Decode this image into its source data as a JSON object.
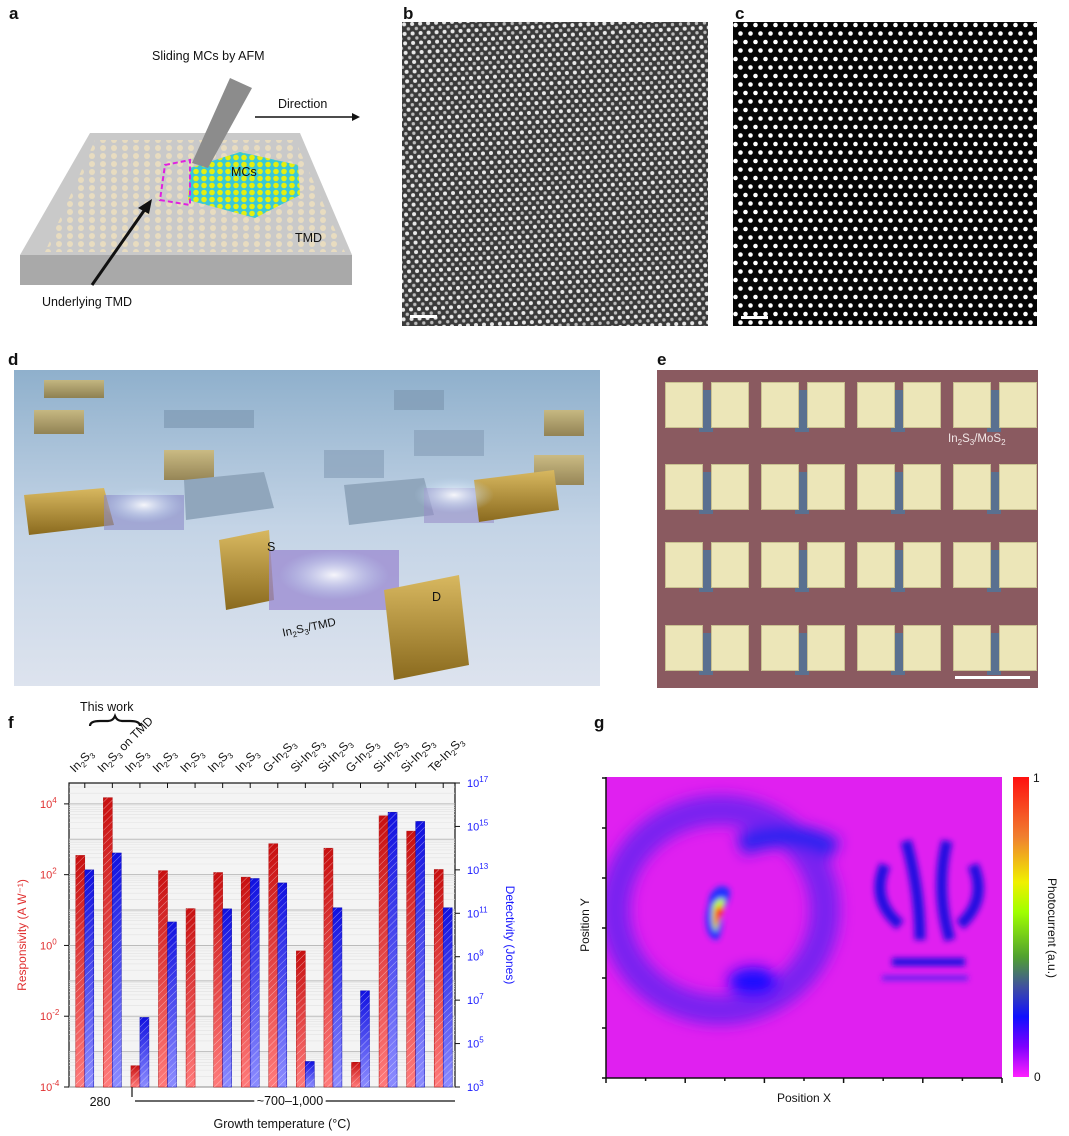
{
  "panels": {
    "a": {
      "label": "a",
      "title": "Sliding MCs by AFM",
      "direction": "Direction",
      "mcs": "MCs",
      "tmd": "TMD",
      "underlying": "Underlying TMD"
    },
    "b": {
      "label": "b"
    },
    "c": {
      "label": "c"
    },
    "d": {
      "label": "d",
      "source": "S",
      "drain": "D",
      "material": "In2S3/TMD"
    },
    "e": {
      "label": "e",
      "material": "In2S3/MoS2"
    },
    "f": {
      "label": "f",
      "this_work": "This work"
    },
    "g": {
      "label": "g"
    }
  },
  "colors": {
    "responsivity": "#e03030",
    "detectivity": "#1a1aff",
    "substrate_e": "#8a5a60",
    "pad": "#ece6b8"
  },
  "chart_data": [
    {
      "type": "bar",
      "title": "",
      "categories": [
        "In2S3",
        "In2S3 on TMD",
        "In2S3",
        "In2S3",
        "In2S3",
        "In2S3",
        "In2S3",
        "G-In2S3",
        "Si-In2S3",
        "Si-In2S3",
        "G-In2S3",
        "Si-In2S3",
        "Si-In2S3",
        "Te-In2S3"
      ],
      "series": [
        {
          "name": "Responsivity",
          "axis": "left",
          "values": [
            350,
            15000,
            0.0004,
            130,
            11,
            115,
            85,
            750,
            0.7,
            560,
            0.0005,
            4600,
            1700,
            140
          ]
        },
        {
          "name": "Detectivity",
          "axis": "right",
          "values": [
            10000000000000.0,
            60000000000000.0,
            1600000.0,
            40000000000.0,
            null,
            160000000000.0,
            4000000000000.0,
            2500000000000.0,
            15000.0,
            180000000000.0,
            27000000.0,
            4500000000000000.0,
            1700000000000000.0,
            180000000000.0
          ]
        }
      ],
      "ylabel": "Responsivity (A W⁻¹)",
      "y2label": "Detectivity (Jones)",
      "xlabel": "Growth temperature (°C)",
      "yscale": "log",
      "ylim_log10": [
        -4,
        4.59
      ],
      "y2scale": "log",
      "y2lim_log10": [
        3,
        17
      ],
      "yticks": [
        "10-4",
        "10-2",
        "100",
        "102",
        "104"
      ],
      "y2ticks": [
        "103",
        "105",
        "107",
        "109",
        "1011",
        "1013",
        "1015",
        "1017"
      ],
      "x_groups": [
        {
          "label": "280",
          "from": 0,
          "to": 1
        },
        {
          "label": "~700–1,000",
          "from": 2,
          "to": 13
        }
      ],
      "grid": true
    },
    {
      "type": "heatmap",
      "xlabel": "Position X",
      "ylabel": "Position Y",
      "colorbar_label": "Photocurrent (a.u.)",
      "colorbar_range": [
        "0",
        "1"
      ]
    }
  ]
}
